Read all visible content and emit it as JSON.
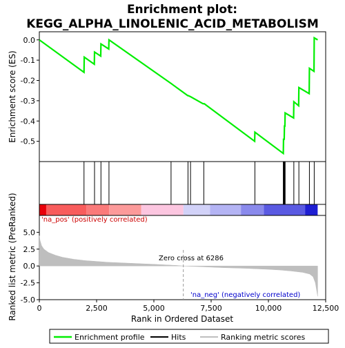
{
  "chart_data": {
    "type": "line",
    "title_line1": "Enrichment plot:",
    "title_line2": "KEGG_ALPHA_LINOLENIC_ACID_METABOLISM",
    "x_label": "Rank in Ordered Dataset",
    "x_range": [
      0,
      12500
    ],
    "x_ticks": [
      0,
      2500,
      5000,
      7500,
      10000,
      12500
    ],
    "x_tick_labels": [
      "0",
      "2,500",
      "5,000",
      "7,500",
      "10,000",
      "12,500"
    ],
    "es_panel": {
      "y_label": "Enrichment score (ES)",
      "y_range": [
        -0.6,
        0.04
      ],
      "y_ticks": [
        0.0,
        -0.1,
        -0.2,
        -0.3,
        -0.4,
        -0.5
      ],
      "y_tick_labels": [
        "0.0",
        "-0.1",
        "-0.2",
        "-0.3",
        "-0.4",
        "-0.5"
      ],
      "series_name": "Enrichment profile",
      "color": "#00ee00",
      "points": [
        [
          0,
          0.0
        ],
        [
          1950,
          -0.16
        ],
        [
          1960,
          -0.085
        ],
        [
          2400,
          -0.12
        ],
        [
          2410,
          -0.06
        ],
        [
          2680,
          -0.08
        ],
        [
          2690,
          -0.02
        ],
        [
          3030,
          -0.045
        ],
        [
          3040,
          0.0
        ],
        [
          5750,
          -0.215
        ],
        [
          6480,
          -0.275
        ],
        [
          6500,
          -0.275
        ],
        [
          6600,
          -0.28
        ],
        [
          7150,
          -0.315
        ],
        [
          7200,
          -0.315
        ],
        [
          9400,
          -0.5
        ],
        [
          9410,
          -0.455
        ],
        [
          10650,
          -0.56
        ],
        [
          10660,
          -0.49
        ],
        [
          10690,
          -0.49
        ],
        [
          10700,
          -0.425
        ],
        [
          10720,
          -0.425
        ],
        [
          10730,
          -0.36
        ],
        [
          11100,
          -0.385
        ],
        [
          11110,
          -0.305
        ],
        [
          11320,
          -0.325
        ],
        [
          11330,
          -0.235
        ],
        [
          11780,
          -0.265
        ],
        [
          11790,
          -0.14
        ],
        [
          11990,
          -0.155
        ],
        [
          12000,
          0.01
        ],
        [
          12150,
          0.0
        ]
      ]
    },
    "hits": [
      1950,
      2410,
      2690,
      3040,
      5750,
      6490,
      6600,
      7180,
      9410,
      10650,
      10670,
      10690,
      10710,
      10730,
      11110,
      11330,
      11790,
      12000
    ],
    "ranking_panel": {
      "y_label": "Ranked list metric (PreRanked)",
      "y_range": [
        -5.0,
        7.5
      ],
      "y_ticks": [
        5.0,
        2.5,
        0.0,
        -2.5,
        -5.0
      ],
      "y_tick_labels": [
        "5.0",
        "2.5",
        "0.0",
        "-2.5",
        "-5.0"
      ],
      "fill_color": "#bebebe",
      "curve": [
        [
          0,
          4.5
        ],
        [
          30,
          3.8
        ],
        [
          100,
          3.0
        ],
        [
          200,
          2.5
        ],
        [
          400,
          2.0
        ],
        [
          700,
          1.6
        ],
        [
          1000,
          1.3
        ],
        [
          1500,
          1.0
        ],
        [
          2000,
          0.8
        ],
        [
          3000,
          0.55
        ],
        [
          4000,
          0.4
        ],
        [
          5000,
          0.25
        ],
        [
          6000,
          0.08
        ],
        [
          6286,
          0.0
        ],
        [
          7000,
          -0.1
        ],
        [
          8000,
          -0.25
        ],
        [
          9000,
          -0.35
        ],
        [
          10000,
          -0.5
        ],
        [
          10500,
          -0.6
        ],
        [
          11000,
          -0.75
        ],
        [
          11500,
          -0.95
        ],
        [
          11800,
          -1.2
        ],
        [
          11950,
          -1.6
        ],
        [
          12050,
          -2.5
        ],
        [
          12100,
          -3.5
        ],
        [
          12150,
          -4.5
        ]
      ],
      "pos_label": "'na_pos' (positively correlated)",
      "neg_label": "'na_neg' (negatively correlated)",
      "zero_cross_label": "Zero cross at 6286",
      "zero_cross_x": 6286,
      "pos_label_color": "#cc0000",
      "neg_label_color": "#0000cc"
    },
    "colorbar": {
      "segments": [
        {
          "x0": 0,
          "x1": 300,
          "color": "#e8000a"
        },
        {
          "x0": 300,
          "x1": 2050,
          "color": "#f85c5c"
        },
        {
          "x0": 2050,
          "x1": 3050,
          "color": "#fa7a7a"
        },
        {
          "x0": 3050,
          "x1": 4450,
          "color": "#fc9a9a"
        },
        {
          "x0": 4450,
          "x1": 6286,
          "color": "#fcc6e0"
        },
        {
          "x0": 6286,
          "x1": 7450,
          "color": "#d2d2f8"
        },
        {
          "x0": 7450,
          "x1": 8800,
          "color": "#b4b4f4"
        },
        {
          "x0": 8800,
          "x1": 9800,
          "color": "#8a8aec"
        },
        {
          "x0": 9800,
          "x1": 11600,
          "color": "#5a5ae2"
        },
        {
          "x0": 11600,
          "x1": 12150,
          "color": "#1e1ed2"
        }
      ]
    },
    "legend": {
      "items": [
        {
          "label": "Enrichment profile",
          "color": "#00ee00",
          "kind": "line"
        },
        {
          "label": "Hits",
          "color": "#000000",
          "kind": "line"
        },
        {
          "label": "Ranking metric scores",
          "color": "#bebebe",
          "kind": "line"
        }
      ]
    }
  }
}
